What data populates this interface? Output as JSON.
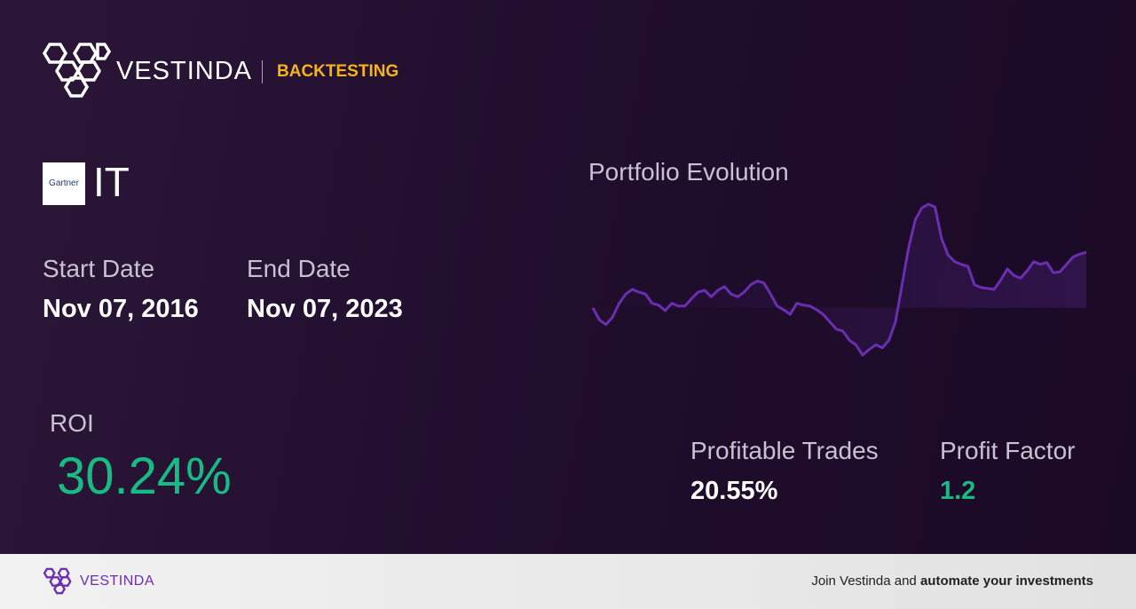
{
  "header": {
    "brand": "VESTINDA",
    "section": "BACKTESTING"
  },
  "asset": {
    "logo_text": "Gartner",
    "ticker": "IT"
  },
  "dates": {
    "start_label": "Start Date",
    "start": "Nov 07, 2016",
    "end_label": "End Date",
    "end": "Nov 07, 2023"
  },
  "roi": {
    "label": "ROI",
    "value": "30.24%"
  },
  "stats": {
    "trades_label": "Profitable Trades",
    "trades": "20.55%",
    "factor_label": "Profit Factor",
    "factor": "1.2"
  },
  "footer": {
    "brand": "VESTINDA",
    "cta_plain": "Join Vestinda and",
    "cta_bold": "automate your investments"
  },
  "chart_data": {
    "type": "line",
    "title": "Portfolio Evolution",
    "color": "#6a2fb0",
    "values": [
      55,
      42,
      37,
      45,
      60,
      70,
      75,
      72,
      70,
      60,
      58,
      52,
      60,
      57,
      57,
      65,
      72,
      74,
      67,
      74,
      78,
      70,
      67,
      72,
      80,
      84,
      82,
      70,
      57,
      53,
      48,
      60,
      58,
      57,
      53,
      48,
      40,
      32,
      30,
      20,
      15,
      4,
      10,
      15,
      12,
      20,
      40,
      80,
      120,
      150,
      163,
      167,
      164,
      130,
      112,
      105,
      102,
      100,
      80,
      77,
      76,
      75,
      85,
      97,
      90,
      87,
      95,
      105,
      102,
      104,
      93,
      94,
      102,
      110,
      113,
      115
    ]
  }
}
